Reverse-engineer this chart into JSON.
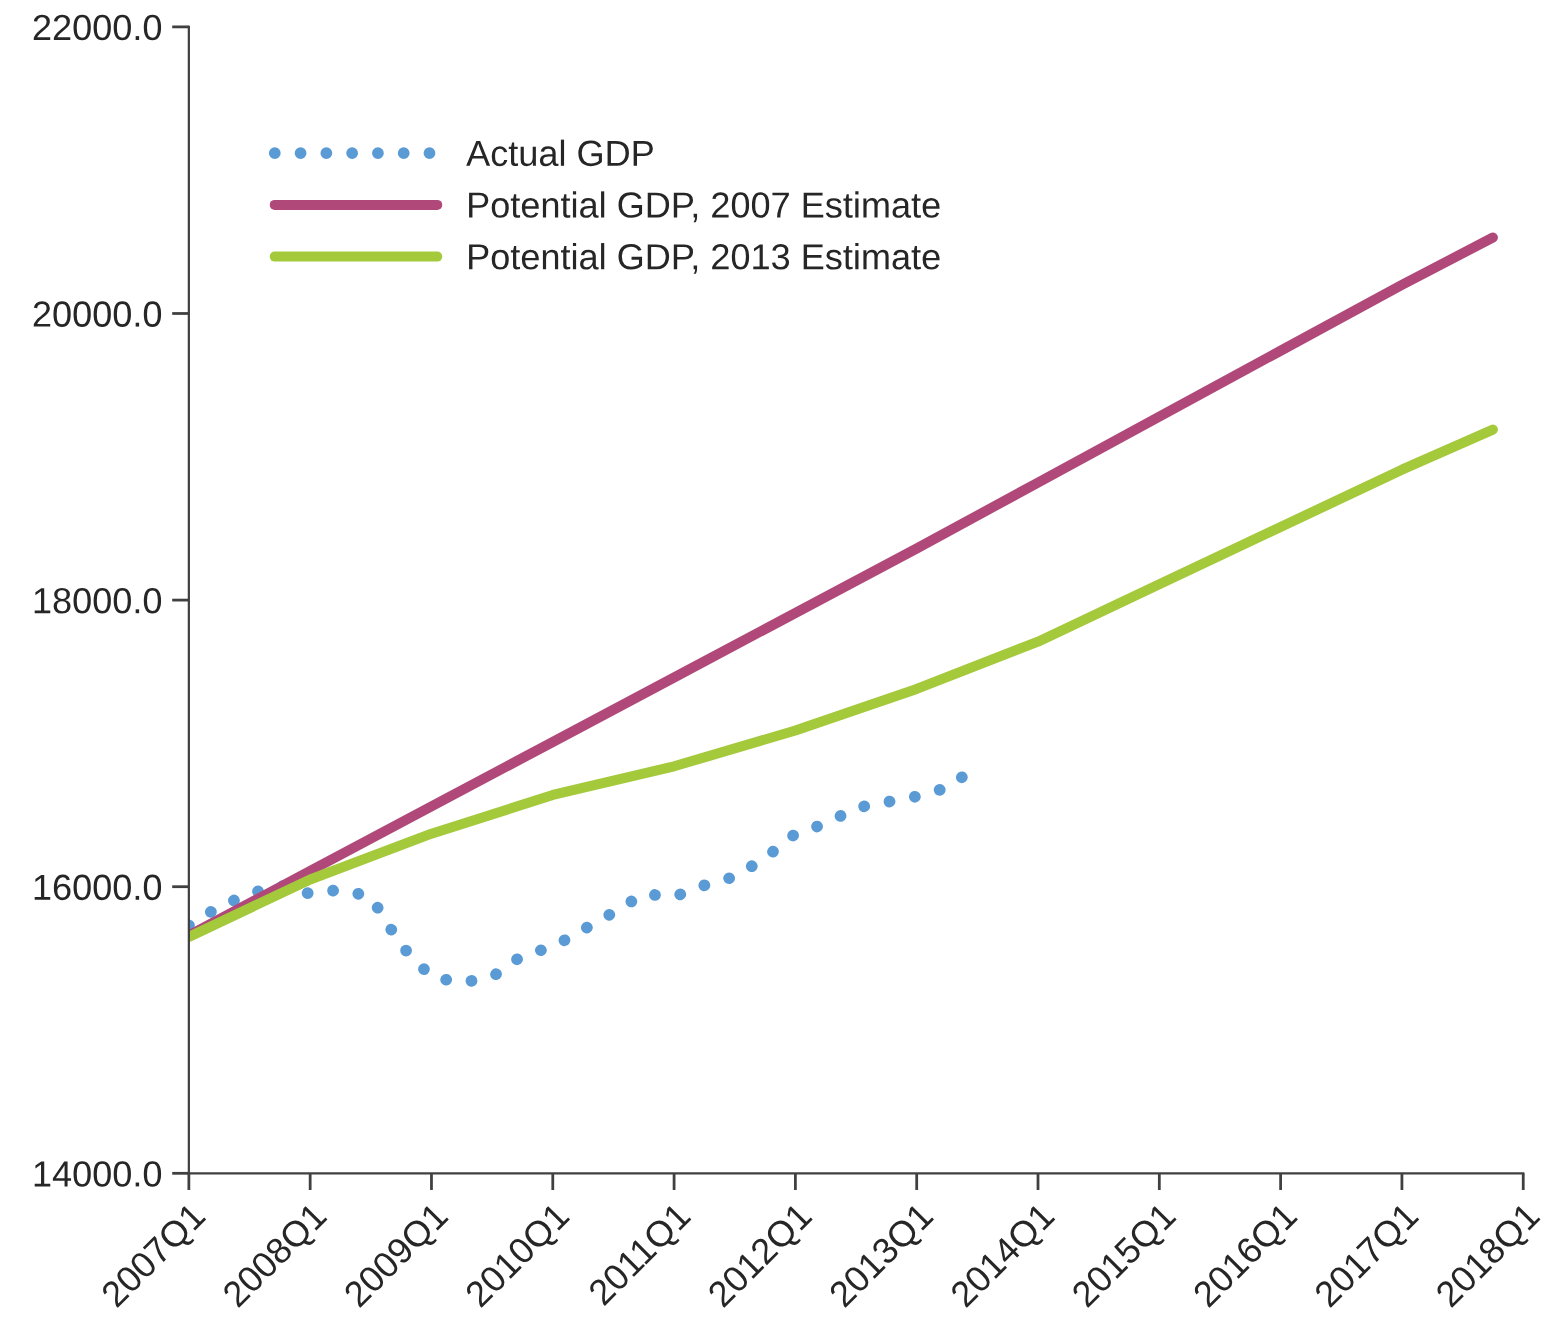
{
  "chart_data": {
    "type": "line",
    "categories": [
      "2007Q1",
      null,
      null,
      null,
      "2008Q1",
      null,
      null,
      null,
      "2009Q1",
      null,
      null,
      null,
      "2010Q1",
      null,
      null,
      null,
      "2011Q1",
      null,
      null,
      null,
      "2012Q1",
      null,
      null,
      null,
      "2013Q1",
      null,
      null,
      null,
      "2014Q1",
      null,
      null,
      null,
      "2015Q1",
      null,
      null,
      null,
      "2016Q1",
      null,
      null,
      null,
      "2017Q1",
      null,
      null,
      null,
      "2018Q1"
    ],
    "ylim": [
      14000,
      22000
    ],
    "yticks": [
      {
        "value": 14000,
        "label": "14000.0"
      },
      {
        "value": 16000,
        "label": "16000.0"
      },
      {
        "value": 18000,
        "label": "18000.0"
      },
      {
        "value": 20000,
        "label": "20000.0"
      },
      {
        "value": 22000,
        "label": "22000.0"
      }
    ],
    "grid": false,
    "legend": "top left",
    "marker": "none",
    "series": [
      {
        "name": "Actual GDP",
        "color": "#5b9bd5",
        "line_style": "dotted",
        "values": [
          15730,
          15860,
          15950,
          16010,
          15950,
          15980,
          15930,
          15590,
          15370,
          15330,
          15370,
          15520,
          15580,
          15700,
          15820,
          15950,
          15930,
          16010,
          16070,
          16200,
          16370,
          16440,
          16550,
          16590,
          16630,
          16690,
          16840,
          null,
          null,
          null,
          null,
          null,
          null,
          null,
          null,
          null,
          null,
          null,
          null,
          null,
          null,
          null,
          null,
          null,
          null
        ]
      },
      {
        "name": "Potential GDP, 2007 Estimate",
        "color": "#b0497a",
        "line_style": "solid",
        "values": [
          15660,
          null,
          null,
          null,
          16110,
          null,
          null,
          null,
          16560,
          null,
          null,
          null,
          17010,
          null,
          null,
          null,
          17460,
          null,
          null,
          null,
          17910,
          null,
          null,
          null,
          18360,
          null,
          null,
          null,
          18820,
          null,
          null,
          null,
          19280,
          null,
          null,
          null,
          19740,
          null,
          null,
          null,
          20200,
          null,
          null,
          20530,
          null
        ]
      },
      {
        "name": "Potential GDP, 2013 Estimate",
        "color": "#a4c93a",
        "line_style": "solid",
        "values": [
          15650,
          null,
          null,
          null,
          16050,
          null,
          null,
          null,
          16370,
          null,
          null,
          null,
          16640,
          null,
          null,
          null,
          16840,
          null,
          null,
          null,
          17090,
          null,
          null,
          null,
          17380,
          null,
          null,
          null,
          17710,
          null,
          null,
          null,
          18110,
          null,
          null,
          null,
          18510,
          null,
          null,
          null,
          18910,
          null,
          null,
          19190,
          null
        ]
      }
    ]
  }
}
